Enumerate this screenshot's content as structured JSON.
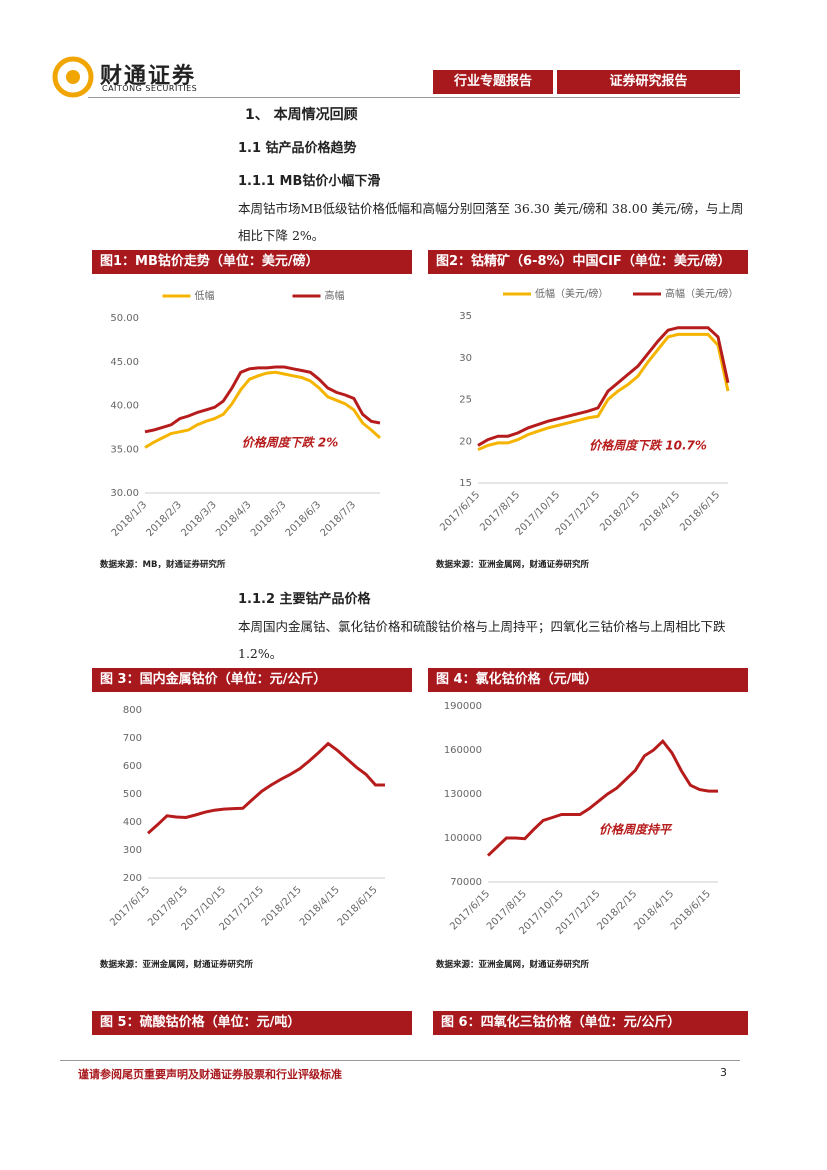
{
  "header": {
    "logo_cn": "财通证券",
    "logo_en": "CAITONG SECURITIES",
    "tag_left": "行业专题报告",
    "tag_right": "证券研究报告"
  },
  "body": {
    "h1": "1、 本周情况回顾",
    "h2": "1.1 钴产品价格趋势",
    "h3a": "1.1.1 MB钴价小幅下滑",
    "p1": "本周钴市场MB低级钴价格低幅和高幅分别回落至 36.30 美元/磅和 38.00 美元/磅，与上周相比下降 2%。",
    "h3b": "1.1.2 主要钴产品价格",
    "p2": "本周国内金属钴、氯化钴价格和硫酸钴价格与上周持平；四氧化三钴价格与上周相比下跌 1.2%。"
  },
  "chart_data": [
    {
      "type": "line",
      "title": "图1：MB钴价走势（单位：美元/磅）",
      "source": "数据来源：MB，财通证券研究所",
      "annotation": "价格周度下跌 2%",
      "categories": [
        "2018/1/3",
        null,
        null,
        null,
        "2018/2/3",
        null,
        null,
        null,
        "2018/3/3",
        null,
        null,
        null,
        "2018/4/3",
        null,
        null,
        null,
        "2018/5/3",
        null,
        null,
        null,
        "2018/6/3",
        null,
        null,
        null,
        "2018/7/3",
        null,
        null,
        null
      ],
      "series": [
        {
          "name": "低幅",
          "color": "#f5b400",
          "values": [
            35.2,
            35.8,
            36.3,
            36.8,
            37.0,
            37.2,
            37.8,
            38.2,
            38.5,
            39.0,
            40.2,
            41.8,
            43.0,
            43.4,
            43.7,
            43.8,
            43.6,
            43.4,
            43.2,
            42.8,
            42.0,
            41.0,
            40.6,
            40.2,
            39.5,
            38.0,
            37.2,
            36.3
          ]
        },
        {
          "name": "高幅",
          "color": "#b71c1c",
          "values": [
            37.0,
            37.2,
            37.5,
            37.8,
            38.5,
            38.8,
            39.2,
            39.5,
            39.8,
            40.5,
            42.0,
            43.8,
            44.2,
            44.3,
            44.3,
            44.4,
            44.4,
            44.2,
            44.0,
            43.8,
            43.0,
            42.0,
            41.5,
            41.2,
            40.8,
            39.0,
            38.2,
            38.0
          ]
        }
      ],
      "ylim": [
        30,
        50
      ],
      "yticks": [
        {
          "value": 30,
          "label": "30.00"
        },
        {
          "value": 35,
          "label": "35.00"
        },
        {
          "value": 40,
          "label": "40.00"
        },
        {
          "value": 45,
          "label": "45.00"
        },
        {
          "value": 50,
          "label": "50.00"
        }
      ]
    },
    {
      "type": "line",
      "title": "图2：钴精矿（6-8%）中国CIF（单位：美元/磅）",
      "source": "数据来源：亚洲金属网，财通证券研究所",
      "annotation": "价格周度下跌 10.7%",
      "categories": [
        "2017/6/15",
        null,
        null,
        null,
        "2017/8/15",
        null,
        null,
        null,
        "2017/10/15",
        null,
        null,
        null,
        "2017/12/15",
        null,
        null,
        null,
        "2018/2/15",
        null,
        null,
        null,
        "2018/4/15",
        null,
        null,
        null,
        "2018/6/15",
        null
      ],
      "series": [
        {
          "name": "低幅（美元/磅）",
          "color": "#f5b400",
          "values": [
            19,
            19.5,
            19.8,
            19.8,
            20.2,
            20.8,
            21.2,
            21.6,
            21.9,
            22.2,
            22.5,
            22.8,
            23.0,
            25.0,
            26.0,
            26.8,
            27.8,
            29.5,
            31.0,
            32.5,
            32.8,
            32.8,
            32.8,
            32.8,
            31.5,
            26.0
          ]
        },
        {
          "name": "高幅（美元/磅）",
          "color": "#b71c1c",
          "values": [
            19.5,
            20.2,
            20.6,
            20.6,
            21.0,
            21.6,
            22.0,
            22.4,
            22.7,
            23.0,
            23.3,
            23.6,
            24.0,
            26.0,
            27.0,
            28.0,
            29.0,
            30.5,
            32.0,
            33.3,
            33.6,
            33.6,
            33.6,
            33.6,
            32.5,
            27.0
          ]
        }
      ],
      "ylim": [
        15,
        35
      ],
      "yticks": [
        15,
        20,
        25,
        30,
        35
      ]
    },
    {
      "type": "line",
      "title": "图 3：国内金属钴价（单位：元/公斤）",
      "source": "数据来源：亚洲金属网，财通证券研究所",
      "categories": [
        "2017/6/15",
        null,
        null,
        null,
        "2017/8/15",
        null,
        null,
        null,
        "2017/10/15",
        null,
        null,
        null,
        "2017/12/15",
        null,
        null,
        null,
        "2018/2/15",
        null,
        null,
        null,
        "2018/4/15",
        null,
        null,
        null,
        "2018/6/15",
        null
      ],
      "series": [
        {
          "color": "#b71c1c",
          "values": [
            360,
            390,
            422,
            418,
            416,
            425,
            435,
            442,
            446,
            448,
            449,
            480,
            510,
            532,
            552,
            570,
            590,
            618,
            648,
            680,
            655,
            625,
            595,
            570,
            532,
            532
          ]
        }
      ],
      "ylim": [
        200,
        800
      ],
      "yticks": [
        200,
        300,
        400,
        500,
        600,
        700,
        800
      ]
    },
    {
      "type": "line",
      "title": "图 4：氯化钴价格（元/吨）",
      "source": "数据来源：亚洲金属网，财通证券研究所",
      "annotation": "价格周度持平",
      "categories": [
        "2017/6/15",
        null,
        null,
        null,
        "2017/8/15",
        null,
        null,
        null,
        "2017/10/15",
        null,
        null,
        null,
        "2017/12/15",
        null,
        null,
        null,
        "2018/2/15",
        null,
        null,
        null,
        "2018/4/15",
        null,
        null,
        null,
        "2018/6/15",
        null
      ],
      "series": [
        {
          "color": "#b71c1c",
          "values": [
            88000,
            94000,
            100000,
            100000,
            99500,
            106000,
            112000,
            114000,
            116000,
            116000,
            116000,
            120000,
            125000,
            130000,
            134000,
            140000,
            146000,
            156000,
            160000,
            166000,
            158000,
            146000,
            136000,
            133000,
            132000,
            132000
          ]
        }
      ],
      "ylim": [
        70000,
        190000
      ],
      "yticks": [
        70000,
        100000,
        130000,
        160000,
        190000
      ]
    }
  ],
  "figures_pending": [
    "图 5：硫酸钴价格（单位：元/吨）",
    "图 6：四氧化三钴价格（单位：元/公斤）"
  ],
  "footer": {
    "note": "谨请参阅尾页重要声明及财通证券股票和行业评级标准",
    "page": 3
  }
}
